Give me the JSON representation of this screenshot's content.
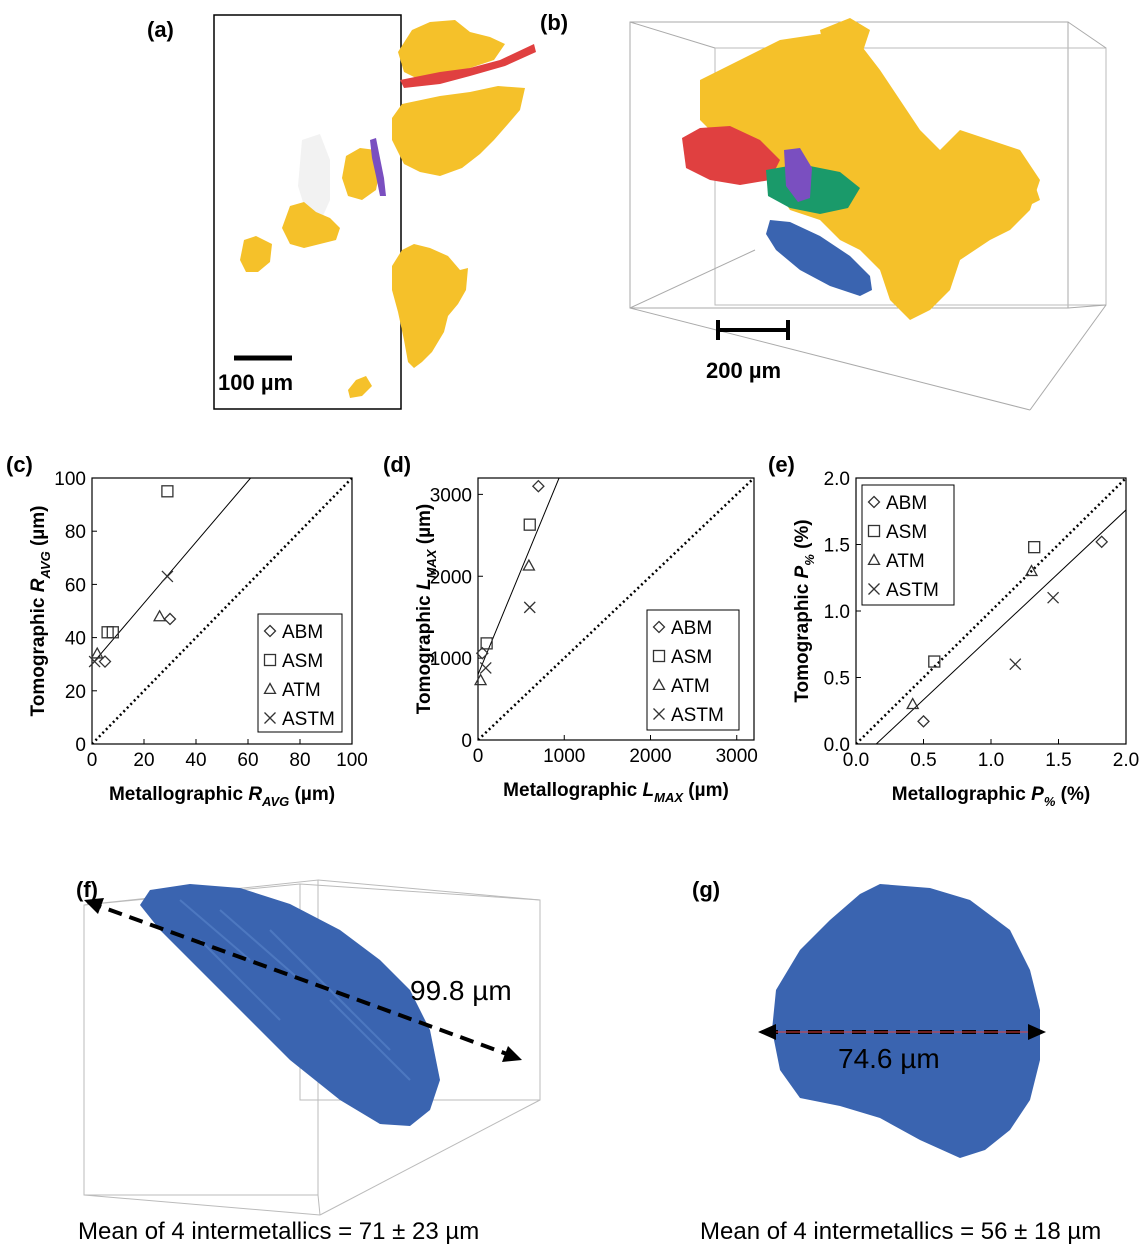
{
  "panels": {
    "a": {
      "label": "(a)",
      "scale_bar": "100 µm"
    },
    "b": {
      "label": "(b)",
      "scale_bar": "200 µm"
    },
    "c": {
      "label": "(c)"
    },
    "d": {
      "label": "(d)"
    },
    "e": {
      "label": "(e)"
    },
    "f": {
      "label": "(f)",
      "measurement": "99.8 µm",
      "caption": "Mean of 4 intermetallics = 71 ± 23 µm"
    },
    "g": {
      "label": "(g)",
      "measurement": "74.6 µm",
      "caption": "Mean of 4 intermetallics = 56 ± 18 µm"
    }
  },
  "colors": {
    "intermetallic_yellow": "#f5c12a",
    "red": "#e04040",
    "purple": "#7a4fc0",
    "green": "#1a9a6a",
    "blue": "#3a64b0"
  },
  "chart_data": [
    {
      "type": "scatter",
      "xlabel": {
        "prefix": "Metallographic ",
        "var": "R",
        "sub": "AVG",
        "unit": " (µm)"
      },
      "ylabel": {
        "prefix": "Tomographic ",
        "var": "R",
        "sub": "AVG",
        "unit": " (µm)"
      },
      "xlim": [
        0,
        100
      ],
      "ylim": [
        0,
        100
      ],
      "xticks": [
        0,
        20,
        40,
        60,
        80,
        100
      ],
      "yticks": [
        0,
        20,
        40,
        60,
        80,
        100
      ],
      "tick_labels_x": [
        "0",
        "20",
        "40",
        "60",
        "80",
        "100"
      ],
      "tick_labels_y": [
        "0",
        "20",
        "40",
        "60",
        "80",
        "100"
      ],
      "legend_position": "bottom-right",
      "series": [
        {
          "name": "ABM",
          "marker": "diamond",
          "points": [
            [
              5,
              31
            ],
            [
              30,
              47
            ]
          ]
        },
        {
          "name": "ASM",
          "marker": "square",
          "points": [
            [
              6,
              42
            ],
            [
              8,
              42
            ],
            [
              29,
              95
            ]
          ]
        },
        {
          "name": "ATM",
          "marker": "triangle",
          "points": [
            [
              2,
              34
            ],
            [
              26,
              48
            ]
          ]
        },
        {
          "name": "ASTM",
          "marker": "x",
          "points": [
            [
              1,
              31
            ],
            [
              29,
              63
            ]
          ]
        }
      ],
      "fit_line": [
        [
          0,
          30
        ],
        [
          61,
          100
        ]
      ],
      "identity_line": true
    },
    {
      "type": "scatter",
      "xlabel": {
        "prefix": "Metallographic ",
        "var": "L",
        "sub": "MAX",
        "unit": " (µm)"
      },
      "ylabel": {
        "prefix": "Tomographic ",
        "var": "L",
        "sub": "MAX",
        "unit": " (µm)"
      },
      "xlim": [
        0,
        3200
      ],
      "ylim": [
        0,
        3200
      ],
      "xticks": [
        0,
        1000,
        2000,
        3000
      ],
      "yticks": [
        0,
        1000,
        2000,
        3000
      ],
      "tick_labels_x": [
        "0",
        "1000",
        "2000",
        "3000"
      ],
      "tick_labels_y": [
        "0",
        "1000",
        "2000",
        "3000"
      ],
      "legend_position": "bottom-right",
      "series": [
        {
          "name": "ABM",
          "marker": "diamond",
          "points": [
            [
              50,
              1060
            ],
            [
              700,
              3100
            ]
          ]
        },
        {
          "name": "ASM",
          "marker": "square",
          "points": [
            [
              100,
              1180
            ],
            [
              600,
              2630
            ]
          ]
        },
        {
          "name": "ATM",
          "marker": "triangle",
          "points": [
            [
              30,
              730
            ],
            [
              590,
              2130
            ]
          ]
        },
        {
          "name": "ASTM",
          "marker": "x",
          "points": [
            [
              90,
              880
            ],
            [
              600,
              1620
            ]
          ]
        }
      ],
      "fit_line": [
        [
          0,
          800
        ],
        [
          940,
          3200
        ]
      ],
      "identity_line": true
    },
    {
      "type": "scatter",
      "xlabel": {
        "prefix": "Metallographic ",
        "var": "P",
        "sub": "%",
        "unit": " (%)"
      },
      "ylabel": {
        "prefix": "Tomographic ",
        "var": "P",
        "sub": "%",
        "unit": " (%)"
      },
      "xlim": [
        0,
        2
      ],
      "ylim": [
        0,
        2
      ],
      "xticks": [
        0,
        0.5,
        1,
        1.5,
        2
      ],
      "yticks": [
        0,
        0.5,
        1,
        1.5,
        2
      ],
      "tick_labels_x": [
        "0.0",
        "0.5",
        "1.0",
        "1.5",
        "2.0"
      ],
      "tick_labels_y": [
        "0.0",
        "0.5",
        "1.0",
        "1.5",
        "2.0"
      ],
      "legend_position": "top-left",
      "series": [
        {
          "name": "ABM",
          "marker": "diamond",
          "points": [
            [
              0.5,
              0.17
            ],
            [
              1.82,
              1.52
            ]
          ]
        },
        {
          "name": "ASM",
          "marker": "square",
          "points": [
            [
              0.58,
              0.62
            ],
            [
              1.32,
              1.48
            ]
          ]
        },
        {
          "name": "ATM",
          "marker": "triangle",
          "points": [
            [
              0.42,
              0.3
            ],
            [
              1.3,
              1.3
            ]
          ]
        },
        {
          "name": "ASTM",
          "marker": "x",
          "points": [
            [
              1.18,
              0.6
            ],
            [
              1.46,
              1.1
            ]
          ]
        }
      ],
      "fit_line": [
        [
          0.15,
          0
        ],
        [
          2,
          1.76
        ]
      ],
      "identity_line": true
    }
  ]
}
